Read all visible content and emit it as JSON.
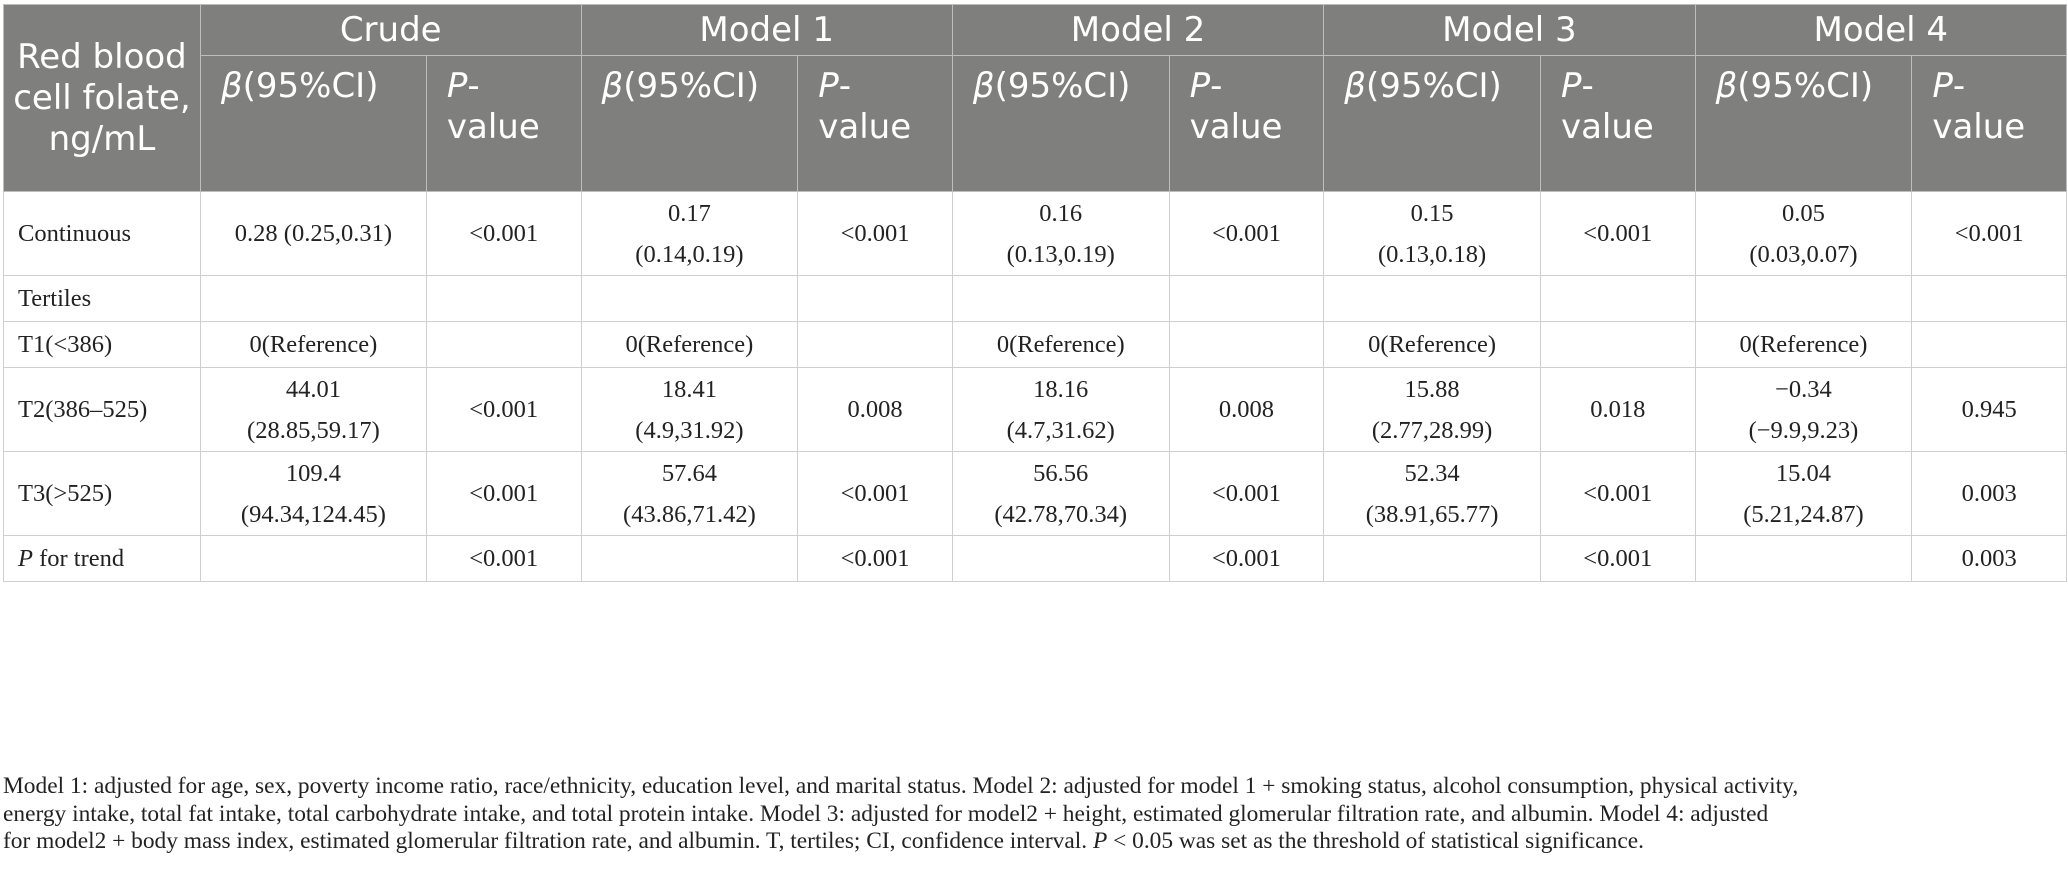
{
  "table": {
    "corner_header": "Red blood cell folate, ng/mL",
    "models": [
      "Crude",
      "Model 1",
      "Model 2",
      "Model 3",
      "Model 4"
    ],
    "beta_symbol": "β",
    "beta_rest": "(95%CI)",
    "p_symbol": "P",
    "p_rest": "-value",
    "rows": [
      {
        "label": "Continuous",
        "cells": [
          [
            "0.28 (0.25,0.31)"
          ],
          [
            "<0.001"
          ],
          [
            "0.17",
            "(0.14,0.19)"
          ],
          [
            "<0.001"
          ],
          [
            "0.16",
            "(0.13,0.19)"
          ],
          [
            "<0.001"
          ],
          [
            "0.15",
            "(0.13,0.18)"
          ],
          [
            "<0.001"
          ],
          [
            "0.05",
            "(0.03,0.07)"
          ],
          [
            "<0.001"
          ]
        ]
      },
      {
        "label": "Tertiles",
        "cells": [
          [
            ""
          ],
          [
            ""
          ],
          [
            ""
          ],
          [
            ""
          ],
          [
            ""
          ],
          [
            ""
          ],
          [
            ""
          ],
          [
            ""
          ],
          [
            ""
          ],
          [
            ""
          ]
        ]
      },
      {
        "label": "T1(<386)",
        "cells": [
          [
            "0(Reference)"
          ],
          [
            ""
          ],
          [
            "0(Reference)"
          ],
          [
            ""
          ],
          [
            "0(Reference)"
          ],
          [
            ""
          ],
          [
            "0(Reference)"
          ],
          [
            ""
          ],
          [
            "0(Reference)"
          ],
          [
            ""
          ]
        ]
      },
      {
        "label": "T2(386–525)",
        "cells": [
          [
            "44.01",
            "(28.85,59.17)"
          ],
          [
            "<0.001"
          ],
          [
            "18.41",
            "(4.9,31.92)"
          ],
          [
            "0.008"
          ],
          [
            "18.16",
            "(4.7,31.62)"
          ],
          [
            "0.008"
          ],
          [
            "15.88",
            "(2.77,28.99)"
          ],
          [
            "0.018"
          ],
          [
            "−0.34",
            "(−9.9,9.23)"
          ],
          [
            "0.945"
          ]
        ]
      },
      {
        "label": "T3(>525)",
        "cells": [
          [
            "109.4",
            "(94.34,124.45)"
          ],
          [
            "<0.001"
          ],
          [
            "57.64",
            "(43.86,71.42)"
          ],
          [
            "<0.001"
          ],
          [
            "56.56",
            "(42.78,70.34)"
          ],
          [
            "<0.001"
          ],
          [
            "52.34",
            "(38.91,65.77)"
          ],
          [
            "<0.001"
          ],
          [
            "15.04",
            "(5.21,24.87)"
          ],
          [
            "0.003"
          ]
        ]
      },
      {
        "label_italic": "P",
        "label_rest": " for trend",
        "cells": [
          [
            ""
          ],
          [
            "<0.001"
          ],
          [
            ""
          ],
          [
            "<0.001"
          ],
          [
            ""
          ],
          [
            "<0.001"
          ],
          [
            ""
          ],
          [
            "<0.001"
          ],
          [
            ""
          ],
          [
            "0.003"
          ]
        ]
      }
    ]
  },
  "footnote": {
    "line1": "Model 1: adjusted for age, sex, poverty income ratio, race/ethnicity, education level, and marital status. Model 2: adjusted for model 1 + smoking status, alcohol consumption, physical activity,",
    "line2": "energy intake, total fat intake, total carbohydrate intake, and total protein intake. Model 3: adjusted for model2 + height, estimated glomerular filtration rate, and albumin. Model 4: adjusted",
    "line3a": "for model2 + body mass index, estimated glomerular filtration rate, and albumin. T, tertiles; CI, confidence interval. ",
    "line3b": "P",
    "line3c": " < 0.05 was set as the threshold of statistical significance."
  }
}
